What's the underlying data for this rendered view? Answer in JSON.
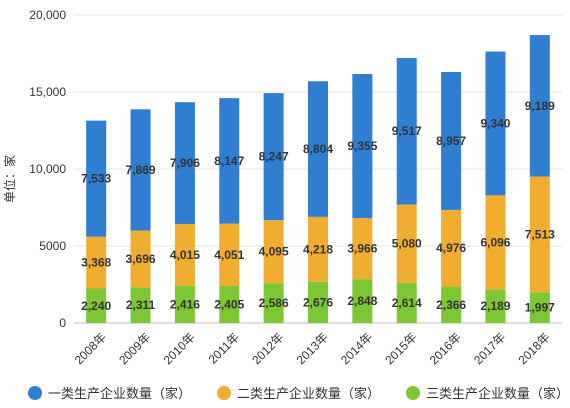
{
  "chart_data": {
    "type": "bar",
    "stacked": true,
    "categories": [
      "2008年",
      "2009年",
      "2010年",
      "2011年",
      "2012年",
      "2013年",
      "2014年",
      "2015年",
      "2016年",
      "2017年",
      "2018年"
    ],
    "series": [
      {
        "name": "三类生产企业数量（家）",
        "color": "#7dc634",
        "values": [
          2240,
          2311,
          2416,
          2405,
          2586,
          2676,
          2848,
          2614,
          2366,
          2189,
          1997
        ]
      },
      {
        "name": "二类生产企业数量（家）",
        "color": "#f0ad30",
        "values": [
          3368,
          3696,
          4015,
          4051,
          4095,
          4218,
          3966,
          5080,
          4976,
          6096,
          7513
        ]
      },
      {
        "name": "一类生产企业数量（家）",
        "color": "#2f7ed2",
        "values": [
          7533,
          7869,
          7906,
          8147,
          8247,
          8804,
          9355,
          9517,
          8957,
          9340,
          9189
        ]
      }
    ],
    "legend_order": [
      2,
      1,
      0
    ],
    "ylabel": "单位：家",
    "ylim": [
      0,
      20000
    ],
    "yticks": [
      "0",
      "5000",
      "10,000",
      "15,000",
      "20,000"
    ],
    "ytick_values": [
      0,
      5000,
      10000,
      15000,
      20000
    ],
    "grid": true,
    "legend_position": "bottom-left"
  }
}
